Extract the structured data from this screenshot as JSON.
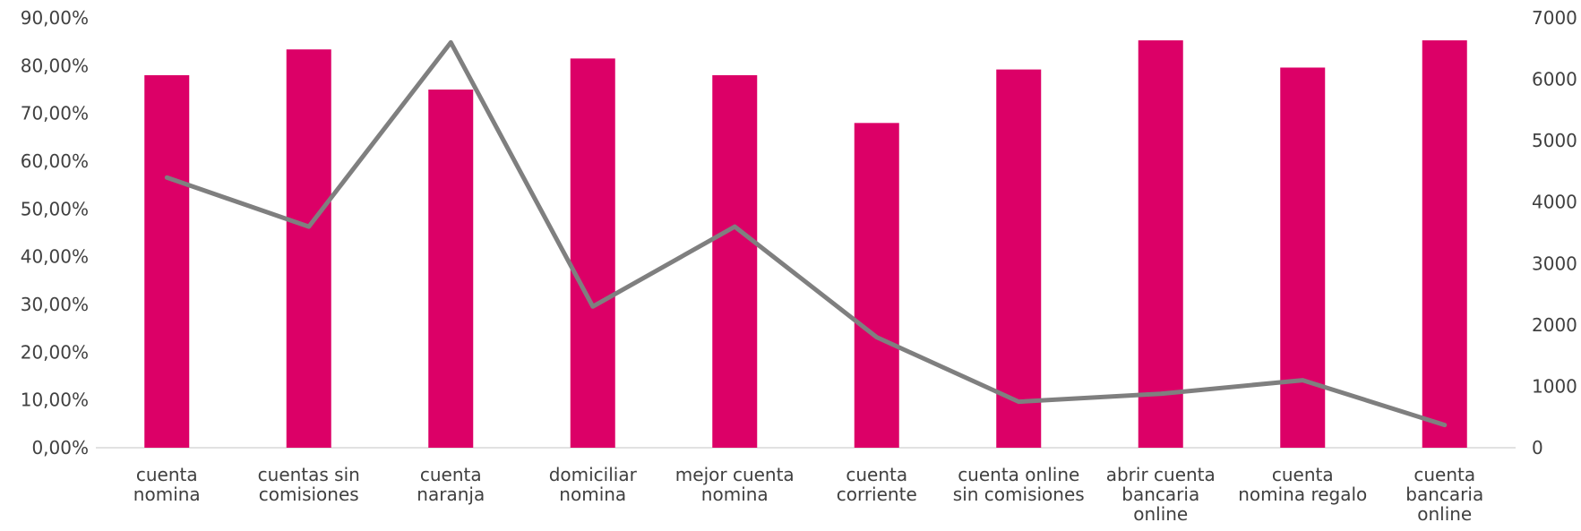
{
  "chart_data": {
    "type": "bar",
    "title": "",
    "xlabel": "",
    "ylabel": "",
    "y2label": "",
    "grid": false,
    "legend": "none",
    "categories": [
      [
        "cuenta",
        "nomina"
      ],
      [
        "cuentas sin",
        "comisiones"
      ],
      [
        "cuenta",
        "naranja"
      ],
      [
        "domiciliar",
        "nomina"
      ],
      [
        "mejor cuenta",
        "nomina"
      ],
      [
        "cuenta",
        "corriente"
      ],
      [
        "cuenta online",
        "sin comisiones"
      ],
      [
        "abrir cuenta",
        "bancaria",
        "online"
      ],
      [
        "cuenta",
        "nomina regalo"
      ],
      [
        "cuenta",
        "bancaria",
        "online"
      ]
    ],
    "ylim": [
      0,
      90
    ],
    "yticks": [
      0,
      10,
      20,
      30,
      40,
      50,
      60,
      70,
      80,
      90
    ],
    "ytick_labels": [
      "0,00%",
      "10,00%",
      "20,00%",
      "30,00%",
      "40,00%",
      "50,00%",
      "60,00%",
      "70,00%",
      "80,00%",
      "90,00%"
    ],
    "y2lim": [
      0,
      7000
    ],
    "y2ticks": [
      0,
      1000,
      2000,
      3000,
      4000,
      5000,
      6000,
      7000
    ],
    "y2tick_labels": [
      "0",
      "1000",
      "2000",
      "3000",
      "4000",
      "5000",
      "6000",
      "7000"
    ],
    "series": [
      {
        "type": "bar",
        "axis": "left",
        "color": "#dc0067",
        "values": [
          78,
          83.4,
          75,
          81.5,
          78,
          68,
          79.2,
          85.3,
          79.6,
          85.3
        ]
      },
      {
        "type": "line",
        "axis": "right",
        "color": "#7f7f7f",
        "values": [
          4400,
          3600,
          6600,
          2300,
          3600,
          1800,
          750,
          880,
          1100,
          370
        ]
      }
    ]
  }
}
